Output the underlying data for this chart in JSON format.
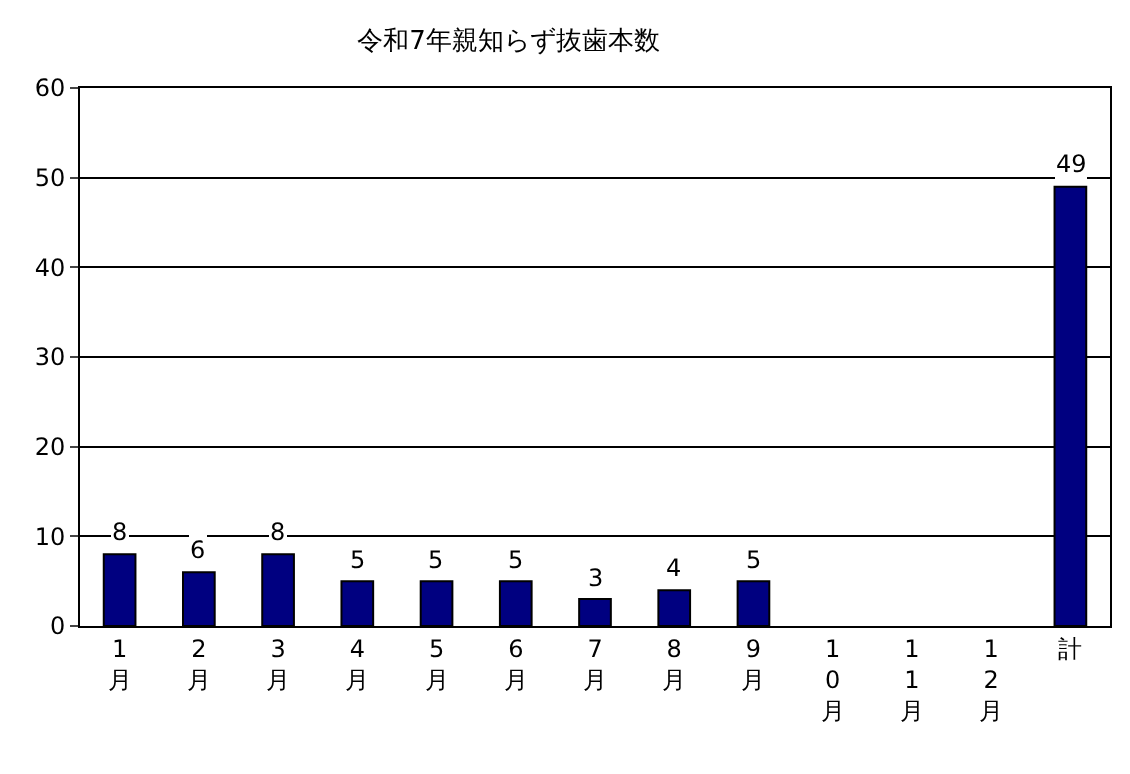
{
  "chart_data": {
    "type": "bar",
    "title": "令和7年親知らず抜歯本数",
    "categories": [
      "1月",
      "2月",
      "3月",
      "4月",
      "5月",
      "6月",
      "7月",
      "8月",
      "9月",
      "10月",
      "11月",
      "12月",
      "計"
    ],
    "values": [
      8,
      6,
      8,
      5,
      5,
      5,
      3,
      4,
      5,
      null,
      null,
      null,
      49
    ],
    "color": "#000080",
    "ylim": [
      0,
      60
    ],
    "yticks": [
      0,
      10,
      20,
      30,
      40,
      50,
      60
    ],
    "grid": "y",
    "data_labels": true
  }
}
